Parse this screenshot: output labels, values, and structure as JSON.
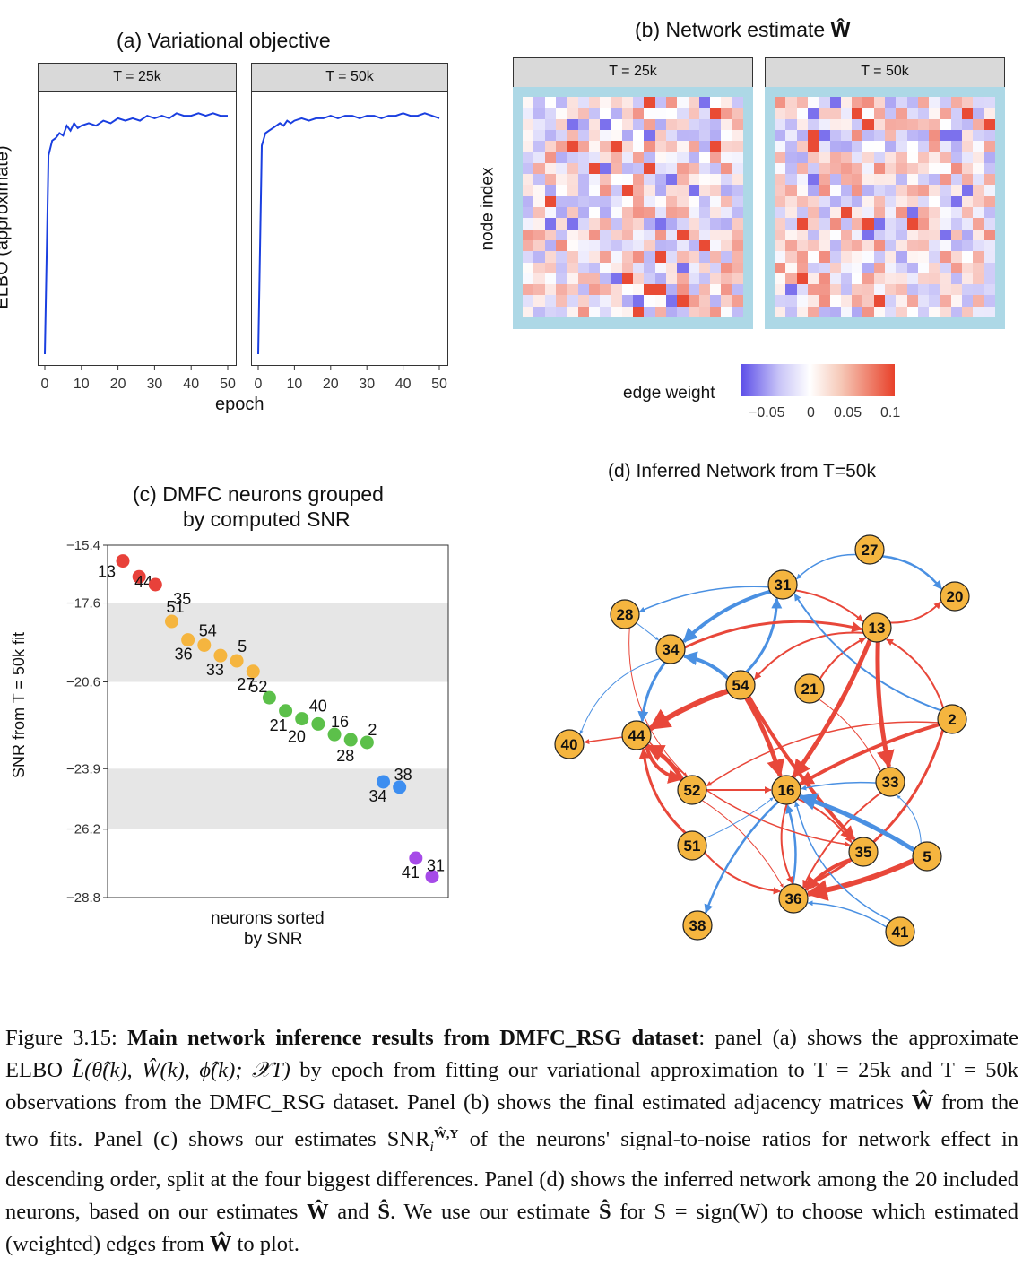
{
  "panel_a": {
    "title": "(a) Variational objective",
    "strips": [
      "T = 25k",
      "T = 50k"
    ],
    "ylabel": "ELBO (approximate)",
    "xlabel": "epoch",
    "xticks": [
      "0",
      "10",
      "20",
      "30",
      "40",
      "50"
    ],
    "line_color": "#1a3fe0"
  },
  "panel_b": {
    "title": "(b) Network estimate",
    "title_symbol": "Ŵ",
    "strips": [
      "T = 25k",
      "T = 50k"
    ],
    "ylabel": "node index",
    "legend_title": "edge weight",
    "legend_ticks": [
      "−0.05",
      "0",
      "0.05",
      "0.1"
    ],
    "colors": {
      "negative": "#5b4de8",
      "zero": "#ffffff",
      "positive": "#e8412a",
      "frame": "#add8e6"
    }
  },
  "panel_c": {
    "title_line1": "(c) DMFC neurons grouped",
    "title_line2": "by computed SNR",
    "ylabel": "SNR from T = 50k fit",
    "xlabel_line1": "neurons sorted",
    "xlabel_line2": "by SNR",
    "yticks": [
      "−15.4",
      "−17.6",
      "−20.6",
      "−23.9",
      "−26.2",
      "−28.8"
    ]
  },
  "panel_d": {
    "title": "(d) Inferred Network from T=50k",
    "node_color": "#f5b53f",
    "edge_pos_color": "#e8473a",
    "edge_neg_color": "#4a90e2",
    "nodes": [
      "27",
      "31",
      "20",
      "28",
      "13",
      "34",
      "54",
      "21",
      "2",
      "40",
      "44",
      "52",
      "16",
      "33",
      "51",
      "35",
      "5",
      "36",
      "38",
      "41"
    ]
  },
  "chart_data": [
    {
      "type": "line",
      "title": "(a) Variational objective",
      "xlabel": "epoch",
      "ylabel": "ELBO (approximate)",
      "xlim": [
        0,
        50
      ],
      "series": [
        {
          "name": "T = 25k",
          "x": [
            0,
            1,
            2,
            3,
            4,
            5,
            6,
            7,
            8,
            9,
            10,
            12,
            14,
            16,
            18,
            20,
            22,
            24,
            26,
            28,
            30,
            32,
            34,
            36,
            38,
            40,
            42,
            44,
            46,
            48,
            50
          ],
          "y": [
            0.0,
            0.8,
            0.86,
            0.87,
            0.89,
            0.88,
            0.92,
            0.9,
            0.93,
            0.91,
            0.92,
            0.93,
            0.92,
            0.94,
            0.93,
            0.95,
            0.94,
            0.95,
            0.94,
            0.96,
            0.95,
            0.96,
            0.95,
            0.97,
            0.96,
            0.96,
            0.97,
            0.96,
            0.97,
            0.96,
            0.96
          ]
        },
        {
          "name": "T = 50k",
          "x": [
            0,
            1,
            2,
            3,
            4,
            5,
            6,
            7,
            8,
            9,
            10,
            12,
            14,
            16,
            18,
            20,
            22,
            24,
            26,
            28,
            30,
            32,
            34,
            36,
            38,
            40,
            42,
            44,
            46,
            48,
            50
          ],
          "y": [
            0.0,
            0.84,
            0.89,
            0.9,
            0.91,
            0.92,
            0.93,
            0.92,
            0.94,
            0.93,
            0.94,
            0.95,
            0.94,
            0.95,
            0.95,
            0.96,
            0.95,
            0.96,
            0.96,
            0.95,
            0.96,
            0.96,
            0.95,
            0.96,
            0.96,
            0.97,
            0.96,
            0.96,
            0.97,
            0.96,
            0.95
          ]
        }
      ]
    },
    {
      "type": "scatter",
      "title": "(c) DMFC neurons grouped by computed SNR",
      "xlabel": "neurons sorted by SNR",
      "ylabel": "SNR from T = 50k fit",
      "ylim": [
        -28.8,
        -15.4
      ],
      "points": [
        {
          "label": "13",
          "rank": 1,
          "snr": -16.0,
          "group": 1
        },
        {
          "label": "44",
          "rank": 2,
          "snr": -16.6,
          "group": 1
        },
        {
          "label": "35",
          "rank": 3,
          "snr": -16.9,
          "group": 1
        },
        {
          "label": "51",
          "rank": 4,
          "snr": -18.3,
          "group": 2
        },
        {
          "label": "36",
          "rank": 5,
          "snr": -19.0,
          "group": 2
        },
        {
          "label": "54",
          "rank": 6,
          "snr": -19.2,
          "group": 2
        },
        {
          "label": "33",
          "rank": 7,
          "snr": -19.6,
          "group": 2
        },
        {
          "label": "5",
          "rank": 8,
          "snr": -19.8,
          "group": 2
        },
        {
          "label": "27",
          "rank": 9,
          "snr": -20.2,
          "group": 2
        },
        {
          "label": "52",
          "rank": 10,
          "snr": -21.2,
          "group": 3
        },
        {
          "label": "21",
          "rank": 11,
          "snr": -21.7,
          "group": 3
        },
        {
          "label": "40",
          "rank": 12,
          "snr": -22.0,
          "group": 3
        },
        {
          "label": "20",
          "rank": 13,
          "snr": -22.2,
          "group": 3
        },
        {
          "label": "16",
          "rank": 14,
          "snr": -22.6,
          "group": 3
        },
        {
          "label": "28",
          "rank": 15,
          "snr": -22.8,
          "group": 3
        },
        {
          "label": "2",
          "rank": 16,
          "snr": -22.9,
          "group": 3
        },
        {
          "label": "34",
          "rank": 17,
          "snr": -24.4,
          "group": 4
        },
        {
          "label": "38",
          "rank": 18,
          "snr": -24.6,
          "group": 4
        },
        {
          "label": "41",
          "rank": 19,
          "snr": -27.3,
          "group": 5
        },
        {
          "label": "31",
          "rank": 20,
          "snr": -28.0,
          "group": 5
        }
      ],
      "group_colors": [
        "#e8413a",
        "#f5b53f",
        "#5cc04a",
        "#3d8ef0",
        "#a64ae8"
      ]
    }
  ],
  "caption": {
    "prefix": "Figure 3.15:",
    "bold": "Main network inference results from DMFC_RSG dataset",
    "text1": ": panel (a) shows the approximate ELBO",
    "elbo_expr": "L̃(θ̂(k), Ŵ(k), ϕ̂(k); 𝒳T)",
    "text2": "by epoch from fitting our variational approximation to T = 25k and T = 50k observations from the DMFC_RSG dataset. Panel (b) shows the final estimated adjacency matrices",
    "text3": "from the two fits. Panel (c) shows our estimates",
    "snr_expr": "SNR",
    "text4": "of the neurons' signal-to-noise ratios for network effect in descending order, split at the four biggest differences. Panel (d) shows the inferred network among the 20 included neurons, based on our estimates",
    "w_hat": "Ŵ",
    "s_hat": "Ŝ",
    "text5": "and",
    "text6": ". We use our estimate",
    "text7": "for S = sign(W) to choose which estimated (weighted) edges from",
    "text8": "to plot."
  }
}
